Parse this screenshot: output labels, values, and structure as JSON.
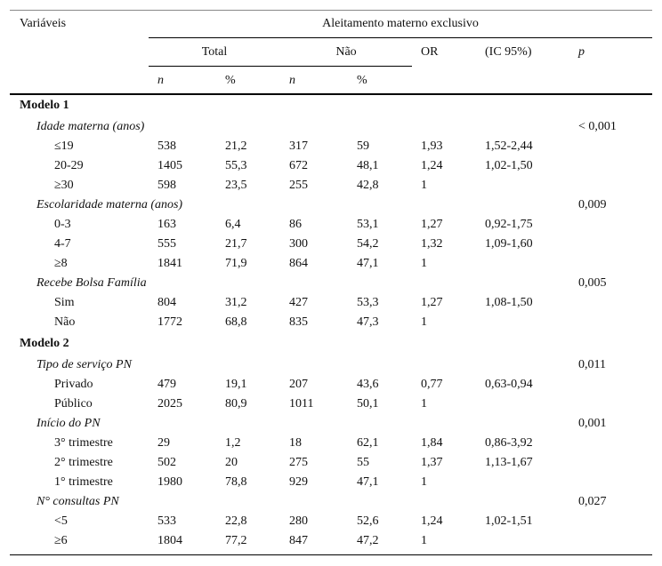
{
  "header": {
    "variables": "Variáveis",
    "group": "Aleitamento materno exclusivo",
    "total": "Total",
    "no": "Não",
    "or": "OR",
    "ci": "(IC 95%)",
    "p": "p",
    "sub": [
      "n",
      "%",
      "n",
      "%"
    ]
  },
  "sections": [
    {
      "title": "Modelo 1",
      "groups": [
        {
          "label": "Idade materna (anos)",
          "p": "< 0,001",
          "rows": [
            {
              "label": "≤19",
              "values": [
                "538",
                "21,2",
                "317",
                "59",
                "1,93",
                "1,52-2,44"
              ]
            },
            {
              "label": "20-29",
              "values": [
                "1405",
                "55,3",
                "672",
                "48,1",
                "1,24",
                "1,02-1,50"
              ]
            },
            {
              "label": "≥30",
              "values": [
                "598",
                "23,5",
                "255",
                "42,8",
                "1"
              ]
            }
          ]
        },
        {
          "label": "Escolaridade materna (anos)",
          "p": "0,009",
          "rows": [
            {
              "label": "0-3",
              "values": [
                "163",
                "6,4",
                "86",
                "53,1",
                "1,27",
                "0,92-1,75"
              ]
            },
            {
              "label": "4-7",
              "values": [
                "555",
                "21,7",
                "300",
                "54,2",
                "1,32",
                "1,09-1,60"
              ]
            },
            {
              "label": "≥8",
              "values": [
                "1841",
                "71,9",
                "864",
                "47,1",
                "1"
              ]
            }
          ]
        },
        {
          "label": "Recebe Bolsa Família",
          "p": "0,005",
          "rows": [
            {
              "label": "Sim",
              "values": [
                "804",
                "31,2",
                "427",
                "53,3",
                "1,27",
                "1,08-1,50"
              ]
            },
            {
              "label": "Não",
              "values": [
                "1772",
                "68,8",
                "835",
                "47,3",
                "1"
              ]
            }
          ]
        }
      ]
    },
    {
      "title": "Modelo 2",
      "groups": [
        {
          "label": "Tipo de serviço PN",
          "p": "0,011",
          "rows": [
            {
              "label": "Privado",
              "values": [
                "479",
                "19,1",
                "207",
                "43,6",
                "0,77",
                "0,63-0,94"
              ]
            },
            {
              "label": "Público",
              "values": [
                "2025",
                "80,9",
                "1011",
                "50,1",
                "1"
              ]
            }
          ]
        },
        {
          "label": "Início do PN",
          "p": "0,001",
          "rows": [
            {
              "label": "3° trimestre",
              "values": [
                "29",
                "1,2",
                "18",
                "62,1",
                "1,84",
                "0,86-3,92"
              ]
            },
            {
              "label": "2° trimestre",
              "values": [
                "502",
                "20",
                "275",
                "55",
                "1,37",
                "1,13-1,67"
              ]
            },
            {
              "label": "1° trimestre",
              "values": [
                "1980",
                "78,8",
                "929",
                "47,1",
                "1"
              ]
            }
          ]
        },
        {
          "label": "N° consultas PN",
          "p": "0,027",
          "rows": [
            {
              "label": "<5",
              "values": [
                "533",
                "22,8",
                "280",
                "52,6",
                "1,24",
                "1,02-1,51"
              ]
            },
            {
              "label": "≥6",
              "values": [
                "1804",
                "77,2",
                "847",
                "47,2",
                "1"
              ]
            }
          ]
        }
      ]
    }
  ]
}
